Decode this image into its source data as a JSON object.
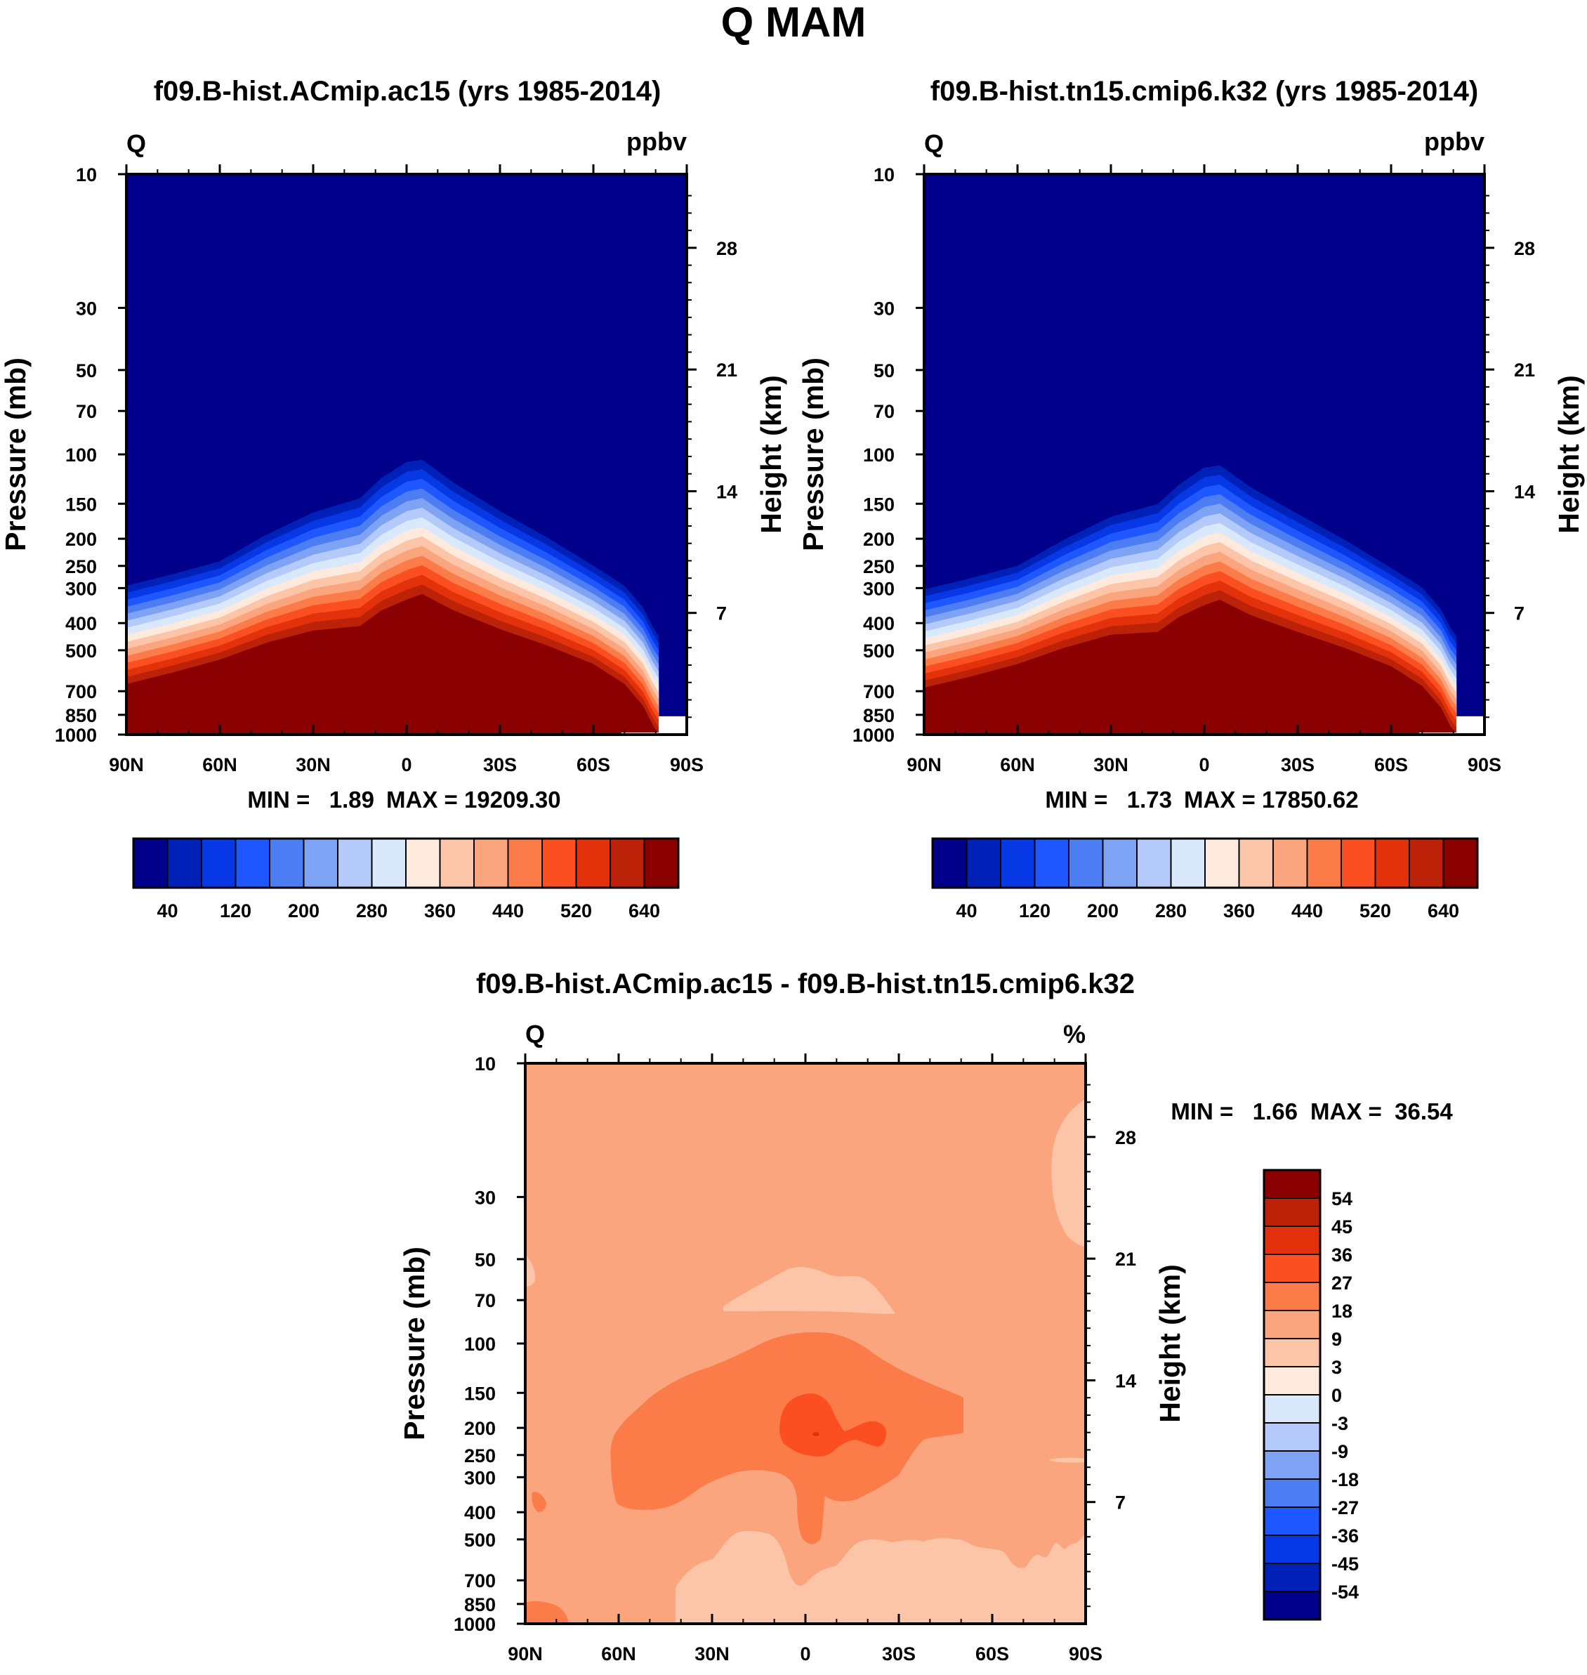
{
  "page": {
    "title": "Q MAM",
    "background": "#ffffff"
  },
  "color_scale": {
    "absolute": [
      "#00008b",
      "#0021b8",
      "#0638e6",
      "#1e56ff",
      "#4c7df3",
      "#7fa3f4",
      "#b3cafa",
      "#d9e8fb",
      "#fdeadc",
      "#fcc5a8",
      "#fba57e",
      "#fb7c49",
      "#fb4f21",
      "#e2310b",
      "#bb2207",
      "#8a0000"
    ],
    "difference": [
      "#00008b",
      "#0021b8",
      "#0638e6",
      "#1e56ff",
      "#4c7df3",
      "#7fa3f4",
      "#b3cafa",
      "#d9e8fb",
      "#fdeadc",
      "#fcc5a8",
      "#fba57e",
      "#fb7c49",
      "#fb4f21",
      "#e2310b",
      "#bb2207",
      "#8a0000"
    ]
  },
  "chart_data": [
    {
      "type": "heatmap",
      "id": "panel_a",
      "title": "f09.B-hist.ACmip.ac15 (yrs 1985-2014)",
      "variable": "Q",
      "units": "ppbv",
      "xlabel": "",
      "ylabel": "Pressure (mb)",
      "ylabel_right": "Height (km)",
      "x_ticks": [
        "90N",
        "60N",
        "30N",
        "0",
        "30S",
        "60S",
        "90S"
      ],
      "x_range": [
        90,
        -90
      ],
      "y_ticks": [
        10,
        30,
        50,
        70,
        100,
        150,
        200,
        250,
        300,
        400,
        500,
        700,
        850,
        1000
      ],
      "y_range": [
        10,
        1000
      ],
      "y_scale": "log",
      "y2_ticks": [
        7,
        14,
        21,
        28
      ],
      "min_label": "MIN =   1.89",
      "max_label": "MAX = 19209.30",
      "min": 1.89,
      "max": 19209.3,
      "colorbar_orientation": "horizontal",
      "colorbar_labels": [
        "40",
        "120",
        "200",
        "280",
        "360",
        "440",
        "520",
        "640"
      ],
      "contour_levels": [
        40,
        80,
        120,
        160,
        200,
        240,
        280,
        320,
        360,
        400,
        440,
        480,
        520,
        560,
        640
      ],
      "boundary_pressure_mb": [
        {
          "lat": 90,
          "p": 660
        },
        {
          "lat": 75,
          "p": 600
        },
        {
          "lat": 60,
          "p": 540
        },
        {
          "lat": 45,
          "p": 470
        },
        {
          "lat": 30,
          "p": 425
        },
        {
          "lat": 15,
          "p": 410
        },
        {
          "lat": 8,
          "p": 360
        },
        {
          "lat": 0,
          "p": 330
        },
        {
          "lat": -5,
          "p": 315
        },
        {
          "lat": -15,
          "p": 360
        },
        {
          "lat": -30,
          "p": 420
        },
        {
          "lat": -45,
          "p": 480
        },
        {
          "lat": -60,
          "p": 560
        },
        {
          "lat": -70,
          "p": 660
        },
        {
          "lat": -76,
          "p": 790
        },
        {
          "lat": -79,
          "p": 920
        },
        {
          "lat": -81,
          "p": 1000
        }
      ]
    },
    {
      "type": "heatmap",
      "id": "panel_b",
      "title": "f09.B-hist.tn15.cmip6.k32 (yrs 1985-2014)",
      "variable": "Q",
      "units": "ppbv",
      "xlabel": "",
      "ylabel": "Pressure (mb)",
      "ylabel_right": "Height (km)",
      "x_ticks": [
        "90N",
        "60N",
        "30N",
        "0",
        "30S",
        "60S",
        "90S"
      ],
      "x_range": [
        90,
        -90
      ],
      "y_ticks": [
        10,
        30,
        50,
        70,
        100,
        150,
        200,
        250,
        300,
        400,
        500,
        700,
        850,
        1000
      ],
      "y_range": [
        10,
        1000
      ],
      "y_scale": "log",
      "y2_ticks": [
        7,
        14,
        21,
        28
      ],
      "min_label": "MIN =   1.73",
      "max_label": "MAX = 17850.62",
      "min": 1.73,
      "max": 17850.62,
      "colorbar_orientation": "horizontal",
      "colorbar_labels": [
        "40",
        "120",
        "200",
        "280",
        "360",
        "440",
        "520",
        "640"
      ],
      "contour_levels": [
        40,
        80,
        120,
        160,
        200,
        240,
        280,
        320,
        360,
        400,
        440,
        480,
        520,
        560,
        640
      ],
      "boundary_pressure_mb": [
        {
          "lat": 90,
          "p": 680
        },
        {
          "lat": 75,
          "p": 620
        },
        {
          "lat": 60,
          "p": 560
        },
        {
          "lat": 45,
          "p": 490
        },
        {
          "lat": 30,
          "p": 440
        },
        {
          "lat": 15,
          "p": 430
        },
        {
          "lat": 8,
          "p": 380
        },
        {
          "lat": 0,
          "p": 345
        },
        {
          "lat": -5,
          "p": 330
        },
        {
          "lat": -15,
          "p": 375
        },
        {
          "lat": -30,
          "p": 430
        },
        {
          "lat": -45,
          "p": 490
        },
        {
          "lat": -60,
          "p": 570
        },
        {
          "lat": -70,
          "p": 670
        },
        {
          "lat": -76,
          "p": 800
        },
        {
          "lat": -79,
          "p": 930
        },
        {
          "lat": -81,
          "p": 1000
        }
      ]
    },
    {
      "type": "heatmap",
      "id": "panel_diff",
      "title": "f09.B-hist.ACmip.ac15 - f09.B-hist.tn15.cmip6.k32",
      "variable": "Q",
      "units": "%",
      "xlabel": "",
      "ylabel": "Pressure (mb)",
      "ylabel_right": "Height (km)",
      "x_ticks": [
        "90N",
        "60N",
        "30N",
        "0",
        "30S",
        "60S",
        "90S"
      ],
      "x_range": [
        90,
        -90
      ],
      "y_ticks": [
        10,
        30,
        50,
        70,
        100,
        150,
        200,
        250,
        300,
        400,
        500,
        700,
        850,
        1000
      ],
      "y_range": [
        10,
        1000
      ],
      "y_scale": "log",
      "y2_ticks": [
        7,
        14,
        21,
        28
      ],
      "min_label": "MIN =   1.66",
      "max_label": "MAX =  36.54",
      "min": 1.66,
      "max": 36.54,
      "colorbar_orientation": "vertical",
      "colorbar_labels": [
        "54",
        "45",
        "36",
        "27",
        "18",
        "9",
        "3",
        "0",
        "-3",
        "-9",
        "-18",
        "-27",
        "-36",
        "-45",
        "-54"
      ],
      "contour_levels": [
        -54,
        -45,
        -36,
        -27,
        -18,
        -9,
        -3,
        0,
        3,
        9,
        18,
        27,
        36,
        45,
        54
      ],
      "background_level": "9 to 18"
    }
  ]
}
